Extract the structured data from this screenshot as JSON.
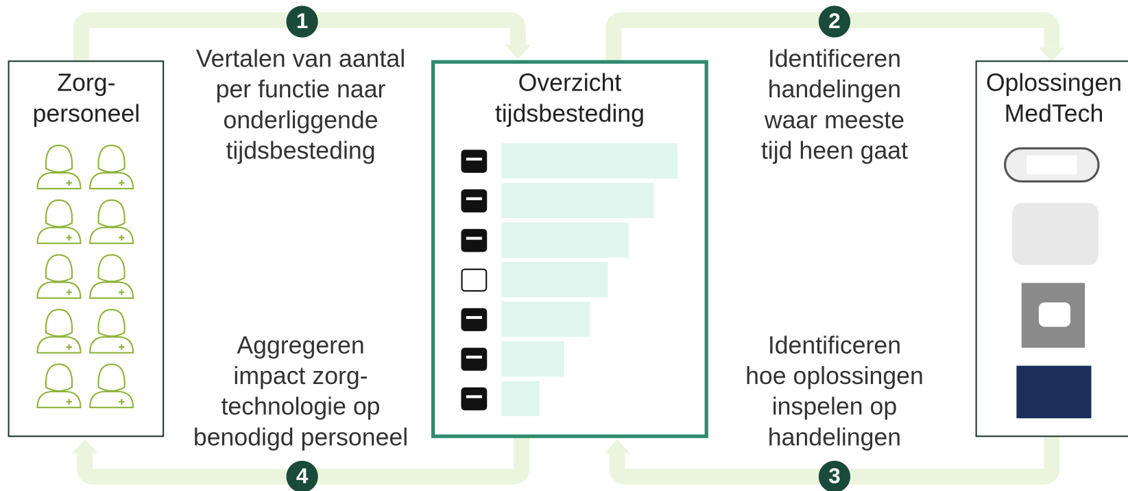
{
  "boxes": [
    {
      "title": [
        "Zorg-",
        "personeel"
      ]
    },
    {
      "title": [
        "Overzicht",
        "tijdsbesteding"
      ]
    },
    {
      "title": [
        "Oplossingen",
        "MedTech"
      ]
    }
  ],
  "steps": [
    {
      "number": "1",
      "lines": [
        "Vertalen van aantal",
        "per functie naar",
        "onderliggende",
        "tijdsbesteding"
      ]
    },
    {
      "number": "2",
      "lines": [
        "Identificeren",
        "handelingen",
        "waar meeste",
        "tijd heen gaat"
      ]
    },
    {
      "number": "3",
      "lines": [
        "Identificeren",
        "hoe oplossingen",
        "inspelen op",
        "handelingen"
      ]
    },
    {
      "number": "4",
      "lines": [
        "Aggregeren",
        "impact zorg-",
        "technologie op",
        "benodigd personeel"
      ]
    }
  ]
}
